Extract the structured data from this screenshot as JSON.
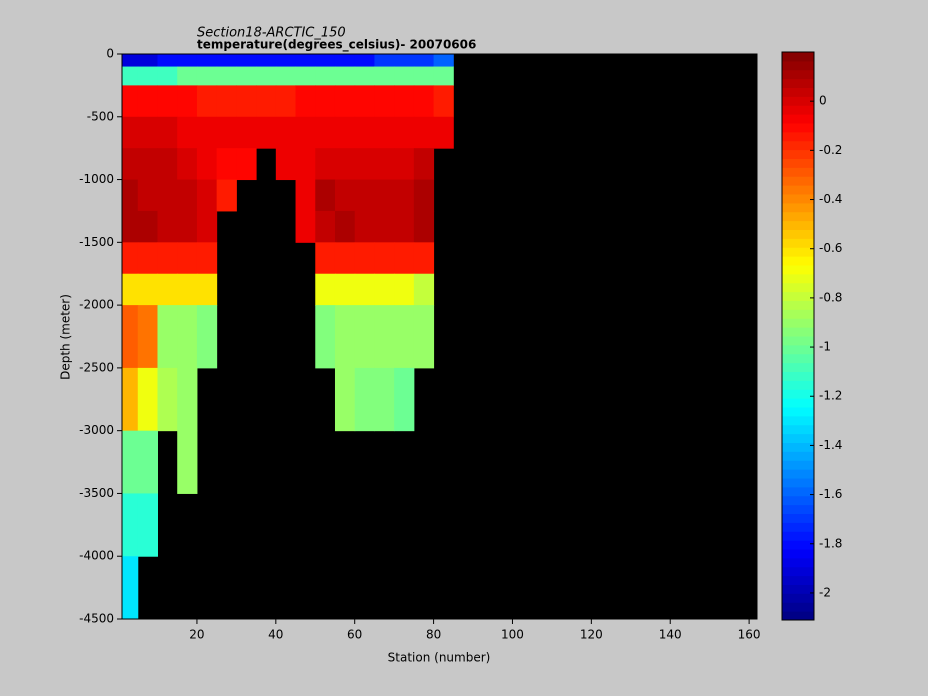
{
  "chart_data": {
    "type": "heatmap",
    "title": "Section18-ARCTIC_150",
    "subtitle": "temperature(degrees_celsius)- 20070606",
    "x_label": "Station (number)",
    "y_label": "Depth (meter)",
    "x_edges": [
      1,
      5,
      10,
      15,
      20,
      25,
      30,
      35,
      40,
      45,
      50,
      55,
      60,
      65,
      70,
      75,
      80,
      85,
      162
    ],
    "y_edges": [
      0,
      -100,
      -250,
      -500,
      -750,
      -1000,
      -1250,
      -1500,
      -1750,
      -2000,
      -2500,
      -3000,
      -3500,
      -4000,
      -4500
    ],
    "values": [
      [
        -1.9,
        -1.9,
        -1.8,
        -1.8,
        -1.8,
        -1.8,
        -1.8,
        -1.8,
        -1.8,
        -1.8,
        -1.8,
        -1.8,
        -1.8,
        -1.7,
        -1.7,
        -1.7,
        -1.6,
        null
      ],
      [
        -1.1,
        -1.1,
        -1.1,
        -1.0,
        -1.0,
        -1.0,
        -1.0,
        -1.0,
        -1.0,
        -1.0,
        -1.0,
        -1.0,
        -1.0,
        -1.0,
        -1.0,
        -1.0,
        -1.0,
        null
      ],
      [
        -0.1,
        -0.1,
        -0.1,
        -0.1,
        -0.15,
        -0.15,
        -0.15,
        -0.15,
        -0.15,
        -0.1,
        -0.1,
        -0.1,
        -0.1,
        -0.1,
        -0.1,
        -0.1,
        -0.15,
        null
      ],
      [
        0,
        0,
        0,
        -0.05,
        -0.05,
        -0.05,
        -0.05,
        -0.05,
        -0.05,
        -0.05,
        -0.05,
        -0.05,
        -0.05,
        -0.05,
        -0.05,
        -0.05,
        -0.05,
        null
      ],
      [
        0.05,
        0.05,
        0.05,
        0,
        -0.05,
        -0.1,
        -0.1,
        null,
        -0.05,
        -0.05,
        0,
        0,
        0,
        0,
        0,
        0.05,
        null,
        null
      ],
      [
        0.1,
        0.05,
        0.05,
        0.05,
        0,
        -0.15,
        null,
        null,
        null,
        -0.05,
        0.1,
        0.05,
        0.05,
        0.05,
        0.05,
        0.1,
        null,
        null
      ],
      [
        0.1,
        0.1,
        0.05,
        0.05,
        0,
        null,
        null,
        null,
        null,
        -0.05,
        0.05,
        0.1,
        0.05,
        0.05,
        0.05,
        0.1,
        null,
        null
      ],
      [
        -0.15,
        -0.15,
        -0.15,
        -0.15,
        -0.15,
        null,
        null,
        null,
        null,
        null,
        -0.15,
        -0.15,
        -0.15,
        -0.15,
        -0.15,
        -0.15,
        null,
        null
      ],
      [
        -0.6,
        -0.6,
        -0.6,
        -0.6,
        -0.6,
        null,
        null,
        null,
        null,
        null,
        -0.7,
        -0.7,
        -0.7,
        -0.7,
        -0.7,
        -0.8,
        null,
        null
      ],
      [
        -0.3,
        -0.35,
        -0.9,
        -0.9,
        -0.95,
        null,
        null,
        null,
        null,
        null,
        -0.95,
        -0.9,
        -0.9,
        -0.9,
        -0.9,
        -0.9,
        null,
        null
      ],
      [
        -0.5,
        -0.7,
        -0.85,
        -0.9,
        null,
        null,
        null,
        null,
        null,
        null,
        null,
        -0.9,
        -0.95,
        -0.95,
        -1.0,
        null,
        null,
        null
      ],
      [
        -1.0,
        -1.0,
        null,
        -0.9,
        null,
        null,
        null,
        null,
        null,
        null,
        null,
        null,
        null,
        null,
        null,
        null,
        null,
        null
      ],
      [
        -1.15,
        -1.15,
        null,
        null,
        null,
        null,
        null,
        null,
        null,
        null,
        null,
        null,
        null,
        null,
        null,
        null,
        null,
        null
      ],
      [
        -1.3,
        null,
        null,
        null,
        null,
        null,
        null,
        null,
        null,
        null,
        null,
        null,
        null,
        null,
        null,
        null,
        null,
        null
      ]
    ],
    "xlim": [
      1,
      162
    ],
    "xticks": [
      20,
      40,
      60,
      80,
      100,
      120,
      140,
      160
    ],
    "ylim": [
      -4500,
      0
    ],
    "yticks": [
      0,
      -500,
      -1000,
      -1500,
      -2000,
      -2500,
      -3000,
      -3500,
      -4000,
      -4500
    ],
    "clim": [
      -2.11,
      0.2
    ],
    "cticks": [
      0,
      -0.2,
      -0.4,
      -0.6,
      -0.8,
      -1,
      -1.2,
      -1.4,
      -1.6,
      -1.8,
      -2
    ],
    "colormap": "jet",
    "missing_color": "#000000"
  }
}
